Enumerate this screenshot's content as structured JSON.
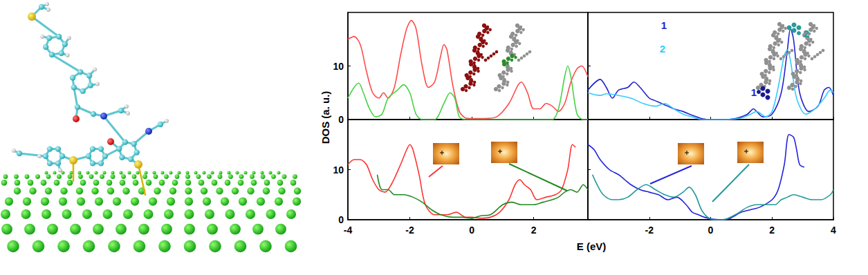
{
  "figure": {
    "xlabel": "E (eV)",
    "ylabel": "DOS (a. u.)"
  },
  "chart_data": [
    {
      "type": "line",
      "xlim": [
        -4,
        3.75
      ],
      "xticks": [
        -4,
        -2,
        0,
        2
      ],
      "ylim": [
        0,
        20
      ],
      "yticks": [
        0,
        10
      ],
      "grid": false,
      "tick_labels": "y",
      "series": [
        {
          "color": "#ff4a4a",
          "x": [
            -4,
            -3.8,
            -3.6,
            -3.4,
            -3.2,
            -3,
            -2.85,
            -2.7,
            -2.5,
            -2.3,
            -2.1,
            -1.95,
            -1.8,
            -1.6,
            -1.4,
            -1.2,
            -1,
            -0.9,
            -0.8,
            -0.6,
            -0.4,
            -0.2,
            0,
            0.4,
            0.8,
            1.2,
            1.5,
            1.6,
            1.8,
            2,
            2.2,
            2.4,
            2.6,
            2.8,
            3,
            3.2,
            3.4,
            3.55,
            3.75
          ],
          "values": [
            15,
            15.5,
            14,
            9,
            5,
            4,
            5,
            4,
            6,
            12,
            17,
            18.5,
            17,
            10,
            6,
            7,
            12,
            14,
            13,
            6,
            1.5,
            0.3,
            0.2,
            0.2,
            0.5,
            3,
            6.5,
            7,
            5,
            2,
            2,
            3,
            2.5,
            1.5,
            3,
            7,
            9.5,
            10,
            8
          ]
        },
        {
          "color": "#44d444",
          "x": [
            -4,
            -3.8,
            -3.65,
            -3.5,
            -3.3,
            -3.1,
            -2.9,
            -2.7,
            -2.4,
            -2.2,
            -2,
            -1.8,
            -1.6,
            -1.2,
            -0.9,
            -0.7,
            -0.55,
            -0.4,
            -0.2,
            0,
            1,
            2,
            2.6,
            2.8,
            3,
            3.1,
            3.2,
            3.4,
            3.6,
            3.75
          ],
          "values": [
            4,
            6,
            6.8,
            5,
            2,
            0.5,
            1,
            4,
            5.5,
            6.5,
            5,
            1,
            0,
            0,
            3,
            5,
            4,
            0.5,
            0,
            0,
            0,
            0,
            0,
            2,
            8,
            10,
            8,
            1,
            0,
            0
          ]
        }
      ]
    },
    {
      "type": "line",
      "xlim": [
        -4,
        4
      ],
      "xticks": [
        -2,
        0,
        2,
        4
      ],
      "ylim": [
        0,
        20
      ],
      "yticks": [
        0,
        10
      ],
      "grid": false,
      "tick_labels": false,
      "series": [
        {
          "name": "1",
          "color": "#2222cc",
          "x": [
            -4,
            -3.6,
            -3.4,
            -3.2,
            -3,
            -2.7,
            -2.5,
            -2.3,
            -2,
            -1.8,
            -1.6,
            -1.4,
            -1.2,
            -0.9,
            -0.6,
            -0.3,
            0,
            0.4,
            0.8,
            1,
            1.2,
            1.4,
            1.5,
            1.7,
            2,
            2.3,
            2.5,
            2.6,
            2.7,
            2.9,
            3.2,
            3.5,
            3.7,
            3.85,
            4
          ],
          "values": [
            5.5,
            7.5,
            6,
            4,
            5.5,
            6,
            7,
            6,
            4,
            3.5,
            3,
            2.5,
            2,
            1.5,
            0.8,
            0.2,
            0,
            0,
            0.2,
            0.5,
            1,
            2,
            1.5,
            0.5,
            1,
            5,
            13,
            17,
            15,
            5,
            1.5,
            2.5,
            5.5,
            6,
            4.5
          ]
        },
        {
          "name": "2",
          "color": "#33ccff",
          "x": [
            -4,
            -3.6,
            -3.4,
            -3,
            -2.6,
            -2.2,
            -1.8,
            -1.5,
            -1.2,
            -0.9,
            -0.6,
            -0.3,
            0.5,
            1,
            1.3,
            1.5,
            1.8,
            2,
            2.2,
            2.4,
            2.5,
            2.6,
            2.8,
            3.1,
            3.4,
            3.7,
            3.9,
            4
          ],
          "values": [
            5,
            4.5,
            4.8,
            4.5,
            4,
            3,
            2.5,
            3,
            2,
            1,
            0.5,
            0,
            0,
            0.3,
            1,
            1.5,
            0.5,
            1.5,
            6,
            12,
            13,
            11,
            4,
            1,
            2,
            4,
            5.5,
            5
          ]
        }
      ]
    },
    {
      "type": "line",
      "xlim": [
        -4,
        3.75
      ],
      "xticks": [
        -4,
        -2,
        0,
        2
      ],
      "ylim": [
        0,
        20
      ],
      "yticks": [
        0,
        10
      ],
      "grid": false,
      "tick_labels": true,
      "series": [
        {
          "color": "#ff3333",
          "x": [
            -4,
            -3.8,
            -3.6,
            -3.4,
            -3.2,
            -3,
            -2.8,
            -2.6,
            -2.3,
            -2.1,
            -2,
            -1.9,
            -1.7,
            -1.5,
            -1.2,
            -0.8,
            -0.5,
            -0.2,
            0,
            0.3,
            0.6,
            0.9,
            1.2,
            1.4,
            1.55,
            1.7,
            1.9,
            2.1,
            2.4,
            2.7,
            2.9,
            3.1,
            3.25,
            3.35
          ],
          "values": [
            11,
            12,
            12,
            11,
            8,
            6,
            5.5,
            7,
            11,
            14,
            15,
            14,
            9,
            3,
            1,
            1,
            1.5,
            0.5,
            0.5,
            0.3,
            0.5,
            1.5,
            4,
            7,
            8,
            7,
            6,
            4,
            4.5,
            5,
            6,
            10,
            15,
            14.5
          ]
        },
        {
          "color": "#1f8a1f",
          "x": [
            -3.05,
            -2.9,
            -2.7,
            -2.5,
            -2.2,
            -1.9,
            -1.6,
            -1.3,
            -1,
            -0.6,
            -0.3,
            0,
            0.3,
            0.6,
            1,
            1.3,
            1.6,
            2,
            2.3,
            2.6,
            2.8,
            3,
            3.2,
            3.4,
            3.6,
            3.75
          ],
          "values": [
            9,
            6,
            6,
            5,
            5,
            4.5,
            3.5,
            2,
            1,
            0.5,
            0.5,
            0.3,
            0.8,
            1,
            3,
            3.5,
            3,
            3,
            3.5,
            4,
            4.5,
            5.5,
            6,
            5.5,
            7,
            6
          ]
        }
      ]
    },
    {
      "type": "line",
      "xlim": [
        -4,
        4
      ],
      "xticks": [
        -2,
        0,
        2,
        4
      ],
      "ylim": [
        0,
        20
      ],
      "yticks": [
        0,
        10
      ],
      "grid": false,
      "tick_labels": "x",
      "series": [
        {
          "color": "#2222dd",
          "x": [
            -4,
            -3.8,
            -3.6,
            -3.3,
            -3,
            -2.8,
            -2.6,
            -2.3,
            -2,
            -1.7,
            -1.4,
            -1.1,
            -0.8,
            -0.6,
            -0.4,
            -0.2,
            0,
            0.3,
            0.6,
            1,
            1.3,
            1.6,
            2,
            2.2,
            2.4,
            2.55,
            2.7,
            2.8,
            2.9,
            3.05
          ],
          "values": [
            15,
            14,
            12,
            10,
            9,
            8,
            7,
            6,
            5.5,
            5,
            4,
            4.5,
            3,
            1.5,
            1,
            0.5,
            0.2,
            0,
            0.2,
            1.5,
            2,
            2.5,
            4,
            6,
            11,
            17,
            16.5,
            14,
            11,
            10.5
          ]
        },
        {
          "color": "#229999",
          "x": [
            -3.85,
            -3.7,
            -3.5,
            -3.2,
            -3,
            -2.7,
            -2.4,
            -2.1,
            -1.8,
            -1.5,
            -1.2,
            -0.9,
            -0.7,
            -0.5,
            -0.3,
            -0.1,
            0.1,
            0.4,
            0.8,
            1.2,
            1.5,
            1.8,
            2.1,
            2.3,
            2.5,
            2.7,
            3,
            3.3,
            3.6,
            3.9,
            4
          ],
          "values": [
            9,
            7,
            5,
            4,
            4,
            4.5,
            6,
            7,
            6,
            5,
            4.5,
            5.5,
            6.5,
            5,
            2,
            0.5,
            0,
            0,
            1,
            2.5,
            3,
            3,
            3,
            4,
            4.5,
            5,
            4.5,
            4,
            4,
            5,
            6
          ]
        }
      ]
    }
  ]
}
